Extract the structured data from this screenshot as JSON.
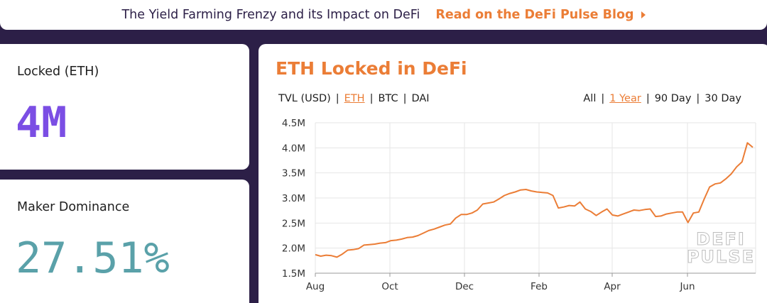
{
  "banner": {
    "text": "The Yield Farming Frenzy and its Impact on DeFi",
    "link_label": "Read on the DeFi Pulse Blog"
  },
  "locked_card": {
    "label": "Locked (ETH)",
    "value": "4M"
  },
  "maker_card": {
    "label": "Maker Dominance",
    "value": "27.51%"
  },
  "chart_card": {
    "title": "ETH Locked in DeFi",
    "currency_options": [
      {
        "label": "TVL (USD)",
        "active": false
      },
      {
        "label": "ETH",
        "active": true
      },
      {
        "label": "BTC",
        "active": false
      },
      {
        "label": "DAI",
        "active": false
      }
    ],
    "range_options": [
      {
        "label": "All",
        "active": false
      },
      {
        "label": "1 Year",
        "active": true
      },
      {
        "label": "90 Day",
        "active": false
      },
      {
        "label": "30 Day",
        "active": false
      }
    ],
    "watermark": [
      "DEFI",
      "PULSE"
    ]
  },
  "colors": {
    "accent": "#eb7d36",
    "background": "#2c1f47",
    "locked_value": "#7b4ee4",
    "maker_value": "#5aa1a9",
    "grid": "#e6e6e6"
  },
  "chart_data": {
    "type": "line",
    "title": "ETH Locked in DeFi",
    "xlabel": "",
    "ylabel": "",
    "x_ticks": [
      "Aug",
      "Oct",
      "Dec",
      "Feb",
      "Apr",
      "Jun"
    ],
    "y_ticks": [
      "1.5M",
      "2.0M",
      "2.5M",
      "3.0M",
      "3.5M",
      "4.0M",
      "4.5M"
    ],
    "ylim": [
      1.5,
      4.5
    ],
    "y_unit": "M ETH",
    "grid": true,
    "series": [
      {
        "color": "#eb7d36",
        "points": [
          [
            "Aug",
            1.87
          ],
          [
            "",
            1.84
          ],
          [
            "",
            1.86
          ],
          [
            "",
            1.85
          ],
          [
            "",
            1.82
          ],
          [
            "",
            1.88
          ],
          [
            "",
            1.96
          ],
          [
            "",
            1.97
          ],
          [
            "",
            1.99
          ],
          [
            "",
            2.06
          ],
          [
            "",
            2.07
          ],
          [
            "",
            2.08
          ],
          [
            "",
            2.1
          ],
          [
            "",
            2.11
          ],
          [
            "",
            2.15
          ],
          [
            "Oct",
            2.16
          ],
          [
            "",
            2.18
          ],
          [
            "",
            2.21
          ],
          [
            "",
            2.22
          ],
          [
            "",
            2.25
          ],
          [
            "",
            2.3
          ],
          [
            "",
            2.35
          ],
          [
            "",
            2.38
          ],
          [
            "",
            2.42
          ],
          [
            "",
            2.46
          ],
          [
            "",
            2.48
          ],
          [
            "",
            2.6
          ],
          [
            "",
            2.67
          ],
          [
            "Dec",
            2.67
          ],
          [
            "",
            2.7
          ],
          [
            "",
            2.76
          ],
          [
            "",
            2.88
          ],
          [
            "",
            2.9
          ],
          [
            "",
            2.92
          ],
          [
            "",
            2.98
          ],
          [
            "",
            3.05
          ],
          [
            "",
            3.09
          ],
          [
            "",
            3.12
          ],
          [
            "",
            3.16
          ],
          [
            "Feb",
            3.17
          ],
          [
            "",
            3.14
          ],
          [
            "",
            3.12
          ],
          [
            "",
            3.11
          ],
          [
            "",
            3.1
          ],
          [
            "",
            3.05
          ],
          [
            "",
            2.8
          ],
          [
            "",
            2.82
          ],
          [
            "",
            2.85
          ],
          [
            "",
            2.84
          ],
          [
            "",
            2.92
          ],
          [
            "",
            2.78
          ],
          [
            "",
            2.73
          ],
          [
            "",
            2.65
          ],
          [
            "",
            2.72
          ],
          [
            "",
            2.78
          ],
          [
            "Apr",
            2.66
          ],
          [
            "",
            2.64
          ],
          [
            "",
            2.68
          ],
          [
            "",
            2.72
          ],
          [
            "",
            2.76
          ],
          [
            "",
            2.75
          ],
          [
            "",
            2.77
          ],
          [
            "",
            2.78
          ],
          [
            "",
            2.63
          ],
          [
            "",
            2.64
          ],
          [
            "",
            2.68
          ],
          [
            "",
            2.7
          ],
          [
            "",
            2.72
          ],
          [
            "",
            2.72
          ],
          [
            "",
            2.51
          ],
          [
            "",
            2.7
          ],
          [
            "Jun",
            2.72
          ],
          [
            "",
            2.98
          ],
          [
            "",
            3.22
          ],
          [
            "",
            3.28
          ],
          [
            "",
            3.3
          ],
          [
            "",
            3.38
          ],
          [
            "",
            3.48
          ],
          [
            "",
            3.62
          ],
          [
            "",
            3.72
          ],
          [
            "",
            4.1
          ],
          [
            "",
            4.01
          ]
        ]
      }
    ]
  }
}
